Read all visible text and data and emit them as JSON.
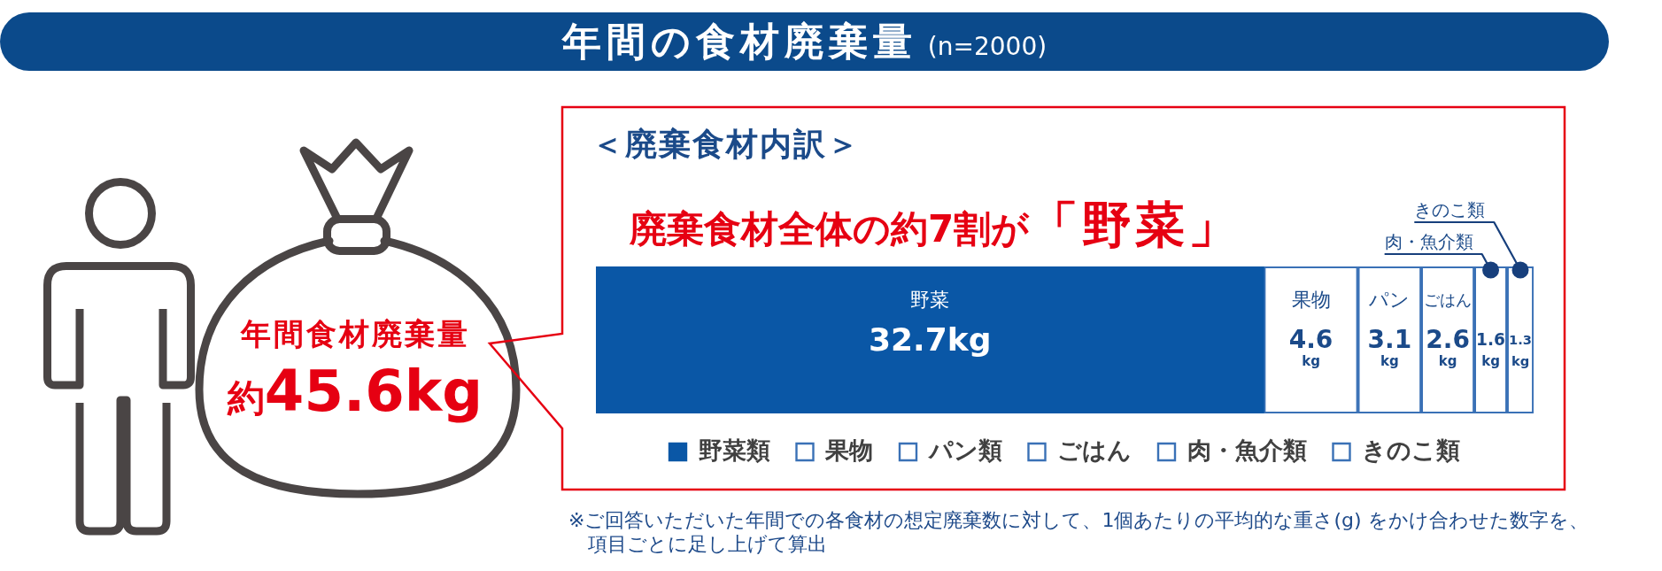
{
  "chart_data": {
    "type": "bar",
    "orientation": "horizontal",
    "stacked": true,
    "title": "年間の食材廃棄量",
    "subtitle": "(n=2000)",
    "categories": [
      null
    ],
    "series": [
      {
        "name": "野菜類",
        "color": "#0a57a6",
        "values": [
          32.7
        ],
        "value_labels": [
          "32.7kg"
        ]
      },
      {
        "name": "果物",
        "color": "#3a71b6",
        "values": [
          4.6
        ],
        "value_labels": [
          "4.6kg"
        ]
      },
      {
        "name": "パン類",
        "color": "#3a71b6",
        "values": [
          3.1
        ],
        "value_labels": [
          "3.1kg"
        ]
      },
      {
        "name": "ごはん",
        "color": "#3a71b6",
        "values": [
          2.6
        ],
        "value_labels": [
          "2.6kg"
        ]
      },
      {
        "name": "肉・魚介類",
        "color": "#3a71b6",
        "values": [
          1.6
        ],
        "value_labels": [
          "1.6kg"
        ]
      },
      {
        "name": "きのこ類",
        "color": "#3a71b6",
        "values": [
          1.3
        ],
        "value_labels": [
          "1.3kg"
        ]
      }
    ],
    "xlim": [
      0,
      45.9
    ],
    "tick_labels": false,
    "legend": "bottom",
    "annotations": [
      "＜廃棄食材内訳＞",
      "廃棄食材全体の約7割が",
      "「野菜」",
      "年間食材廃棄量",
      "約",
      "45.6kg",
      "野菜",
      "果物",
      "パン",
      "ごはん",
      "肉・魚介類",
      "きのこ類",
      "※ご回答いただいた年間での各食材の想定廃棄数に対して、1個あたりの平均的な重さ(g) をかけ合わせた数字を、",
      "項目ごとに足し上げて算出"
    ]
  }
}
